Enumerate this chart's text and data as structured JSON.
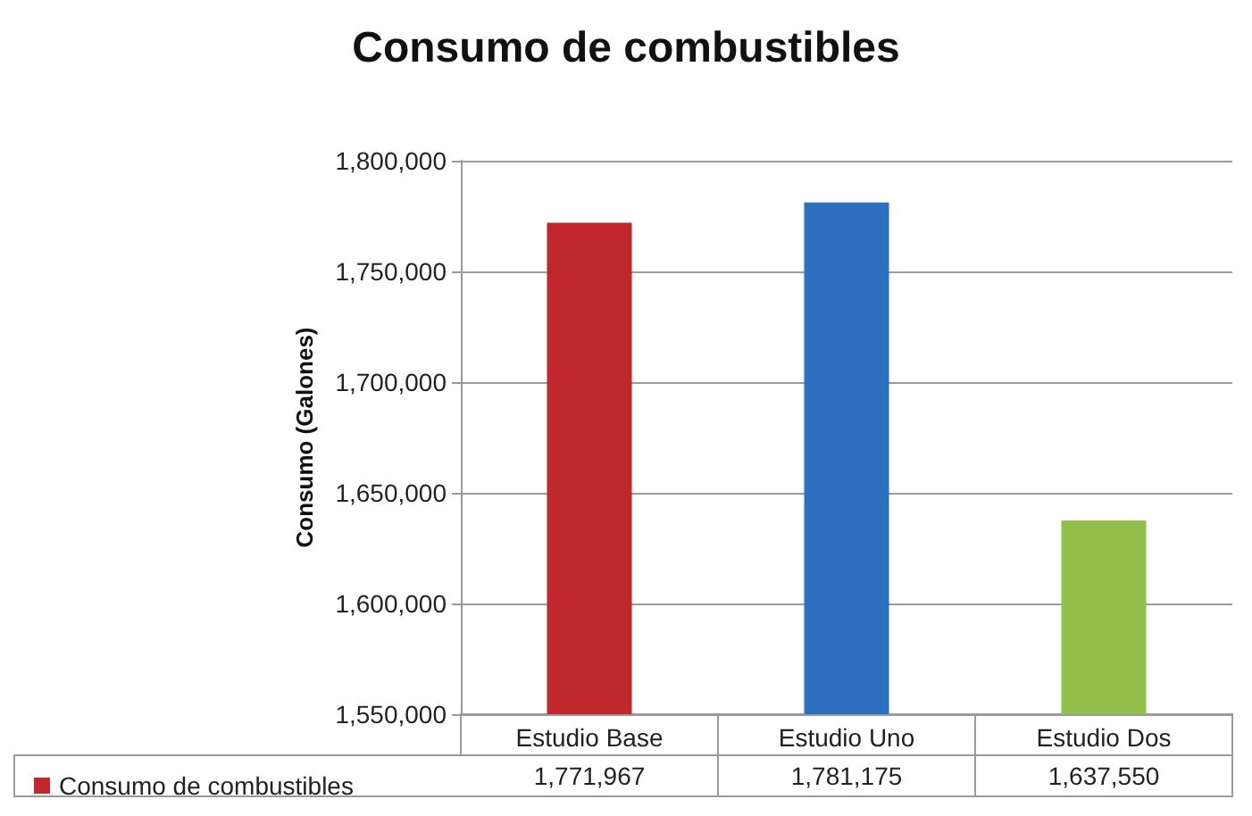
{
  "chart_data": {
    "type": "bar",
    "title": "Consumo de combustibles",
    "ylabel": "Consumo (Galones)",
    "categories": [
      "Estudio Base",
      "Estudio Uno",
      "Estudio Dos"
    ],
    "series": [
      {
        "name": "Consumo de combustibles",
        "color": "#c0282d",
        "colors": [
          "#c0282d",
          "#2e6fc0",
          "#92c04a"
        ],
        "values": [
          1771967,
          1781175,
          1637550
        ],
        "value_labels": [
          "1,771,967",
          "1,781,175",
          "1,637,550"
        ]
      }
    ],
    "ylim": [
      1550000,
      1800000
    ],
    "yticks": [
      {
        "value": 1550000,
        "label": "1,550,000"
      },
      {
        "value": 1600000,
        "label": "1,600,000"
      },
      {
        "value": 1650000,
        "label": "1,650,000"
      },
      {
        "value": 1700000,
        "label": "1,700,000"
      },
      {
        "value": 1750000,
        "label": "1,750,000"
      },
      {
        "value": 1800000,
        "label": "1,800,000"
      }
    ],
    "grid": "y",
    "legend": "bottom left"
  }
}
